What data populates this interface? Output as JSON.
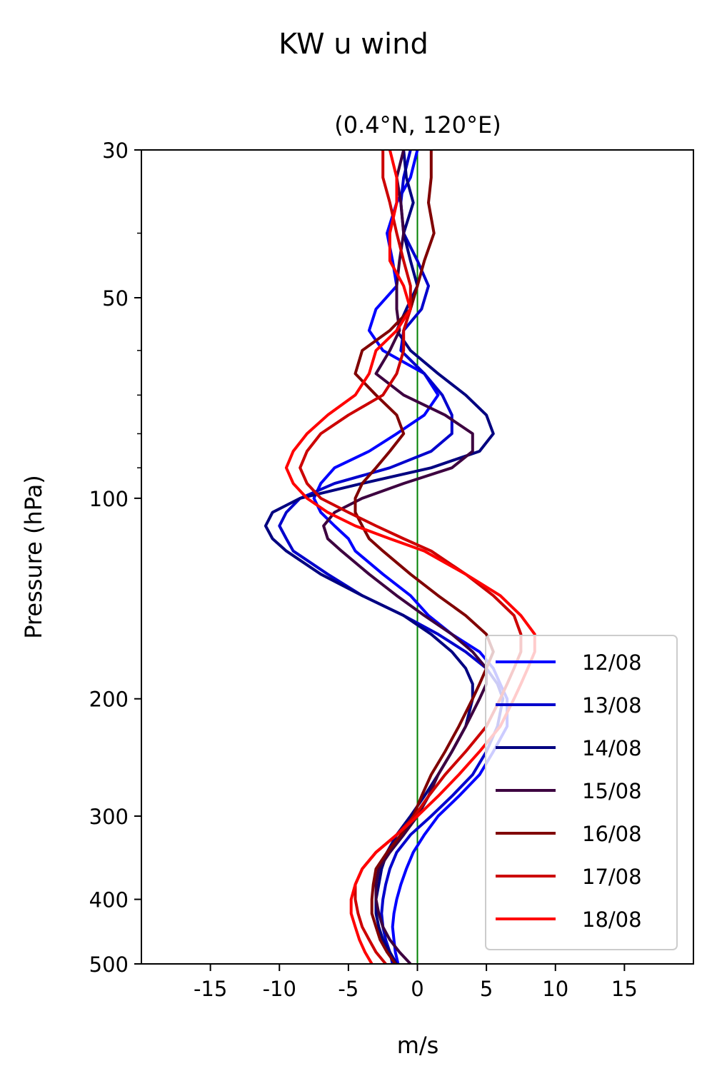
{
  "chart_data": {
    "type": "line",
    "title": "KW u wind",
    "subtitle": "(0.4°N, 120°E)",
    "xlabel": "m/s",
    "ylabel": "Pressure (hPa)",
    "xlim": [
      -20,
      20
    ],
    "ylim": [
      500,
      30
    ],
    "y_scale": "log",
    "x_ticks": [
      -15,
      -10,
      -5,
      0,
      5,
      10,
      15
    ],
    "x_tick_labels": [
      "-15",
      "-10",
      "-5",
      "0",
      "5",
      "10",
      "15"
    ],
    "y_ticks": [
      30,
      50,
      100,
      200,
      300,
      400,
      500
    ],
    "y_tick_labels": [
      "30",
      "50",
      "100",
      "200",
      "300",
      "400",
      "500"
    ],
    "y_minor_ticks": [
      40,
      60,
      70,
      80,
      90
    ],
    "reference_line": {
      "x": 0,
      "color": "#008000"
    },
    "legend_position": "bottom-right",
    "pressure": [
      30,
      33,
      36,
      40,
      44,
      48,
      52,
      56,
      60,
      65,
      70,
      75,
      80,
      85,
      90,
      95,
      100,
      105,
      110,
      115,
      120,
      130,
      140,
      150,
      160,
      170,
      180,
      190,
      200,
      220,
      240,
      260,
      280,
      300,
      320,
      340,
      360,
      380,
      400,
      420,
      440,
      460,
      480,
      500
    ],
    "series": [
      {
        "name": "12/08",
        "color": "#0000ff",
        "values": [
          0.0,
          -0.5,
          -1.5,
          -2.2,
          -1.8,
          -1.5,
          -3.0,
          -3.5,
          -2.5,
          0.5,
          1.5,
          0.5,
          -1.5,
          -3.5,
          -6.0,
          -7.0,
          -7.5,
          -7.0,
          -6.0,
          -5.0,
          -4.5,
          -2.5,
          -0.5,
          0.8,
          2.5,
          4.5,
          5.5,
          6.0,
          6.5,
          6.5,
          5.5,
          4.5,
          3.0,
          1.5,
          0.5,
          -0.3,
          -0.8,
          -1.2,
          -1.5,
          -1.7,
          -1.8,
          -1.7,
          -1.6,
          -1.4
        ]
      },
      {
        "name": "13/08",
        "color": "#0000cc",
        "values": [
          -0.5,
          -1.0,
          -1.2,
          -1.0,
          0.0,
          0.8,
          0.3,
          -1.0,
          -1.2,
          0.5,
          1.8,
          2.5,
          2.5,
          1.0,
          -2.0,
          -6.0,
          -8.5,
          -9.5,
          -10.0,
          -9.5,
          -9.0,
          -6.5,
          -4.0,
          -1.0,
          1.5,
          3.5,
          5.0,
          5.8,
          6.2,
          5.8,
          5.0,
          4.0,
          2.5,
          1.0,
          -0.5,
          -1.5,
          -2.0,
          -2.3,
          -2.5,
          -2.6,
          -2.5,
          -2.3,
          -2.0,
          -1.8
        ]
      },
      {
        "name": "14/08",
        "color": "#000080",
        "values": [
          -1.0,
          -0.8,
          -0.3,
          -1.0,
          -0.5,
          0.0,
          -0.8,
          -1.5,
          -0.5,
          1.5,
          3.5,
          5.0,
          5.5,
          4.5,
          1.0,
          -4.0,
          -8.5,
          -10.5,
          -11.0,
          -10.5,
          -9.5,
          -7.0,
          -4.0,
          -1.0,
          1.0,
          2.5,
          3.5,
          4.0,
          4.0,
          3.5,
          2.5,
          1.5,
          0.5,
          -0.5,
          -1.5,
          -2.2,
          -2.6,
          -2.8,
          -3.0,
          -3.0,
          -2.8,
          -2.5,
          -2.0,
          -1.5
        ]
      },
      {
        "name": "15/08",
        "color": "#3d0040",
        "values": [
          -1.0,
          -1.5,
          -1.2,
          -1.0,
          -1.3,
          -1.5,
          -1.5,
          -1.3,
          -2.0,
          -3.0,
          -1.0,
          2.0,
          4.0,
          4.0,
          2.5,
          -1.0,
          -4.0,
          -6.0,
          -6.8,
          -6.5,
          -5.5,
          -3.5,
          -1.5,
          0.5,
          2.5,
          4.0,
          5.0,
          5.0,
          4.5,
          3.5,
          2.5,
          1.5,
          0.8,
          0.0,
          -1.0,
          -2.0,
          -2.8,
          -3.0,
          -3.0,
          -2.8,
          -2.5,
          -2.0,
          -1.3,
          -0.5
        ]
      },
      {
        "name": "16/08",
        "color": "#800000",
        "values": [
          1.0,
          1.0,
          0.8,
          1.2,
          0.5,
          0.0,
          -0.5,
          -2.0,
          -4.0,
          -4.5,
          -3.0,
          -1.5,
          -1.0,
          -2.0,
          -3.0,
          -4.0,
          -4.5,
          -4.5,
          -4.0,
          -3.5,
          -2.5,
          -0.5,
          1.5,
          3.5,
          5.0,
          5.5,
          5.0,
          4.5,
          4.0,
          3.0,
          2.0,
          1.0,
          0.3,
          -0.3,
          -1.2,
          -2.2,
          -3.0,
          -3.2,
          -3.3,
          -3.3,
          -3.0,
          -2.7,
          -2.2,
          -1.6
        ]
      },
      {
        "name": "17/08",
        "color": "#cc0000",
        "values": [
          -2.5,
          -2.5,
          -2.0,
          -1.5,
          -1.0,
          -0.5,
          -0.5,
          -1.0,
          -1.0,
          -1.5,
          -2.5,
          -5.0,
          -7.0,
          -8.0,
          -8.5,
          -8.0,
          -7.0,
          -5.0,
          -3.0,
          -1.0,
          1.0,
          3.5,
          5.5,
          7.0,
          7.5,
          7.5,
          7.0,
          6.5,
          6.0,
          5.0,
          3.5,
          2.0,
          0.8,
          -0.2,
          -1.5,
          -3.0,
          -4.0,
          -4.5,
          -4.5,
          -4.3,
          -4.0,
          -3.5,
          -3.0,
          -2.3
        ]
      },
      {
        "name": "18/08",
        "color": "#ff0000",
        "values": [
          -2.0,
          -1.5,
          -1.5,
          -2.0,
          -2.0,
          -1.0,
          -0.5,
          -1.5,
          -3.0,
          -3.5,
          -4.5,
          -6.5,
          -8.0,
          -9.0,
          -9.5,
          -9.0,
          -8.0,
          -6.5,
          -4.5,
          -2.0,
          0.5,
          3.5,
          6.0,
          7.5,
          8.5,
          8.5,
          8.0,
          7.5,
          7.0,
          6.0,
          4.5,
          3.0,
          1.5,
          0.0,
          -1.5,
          -3.0,
          -4.0,
          -4.5,
          -4.8,
          -4.8,
          -4.5,
          -4.2,
          -3.8,
          -3.3
        ]
      }
    ]
  }
}
